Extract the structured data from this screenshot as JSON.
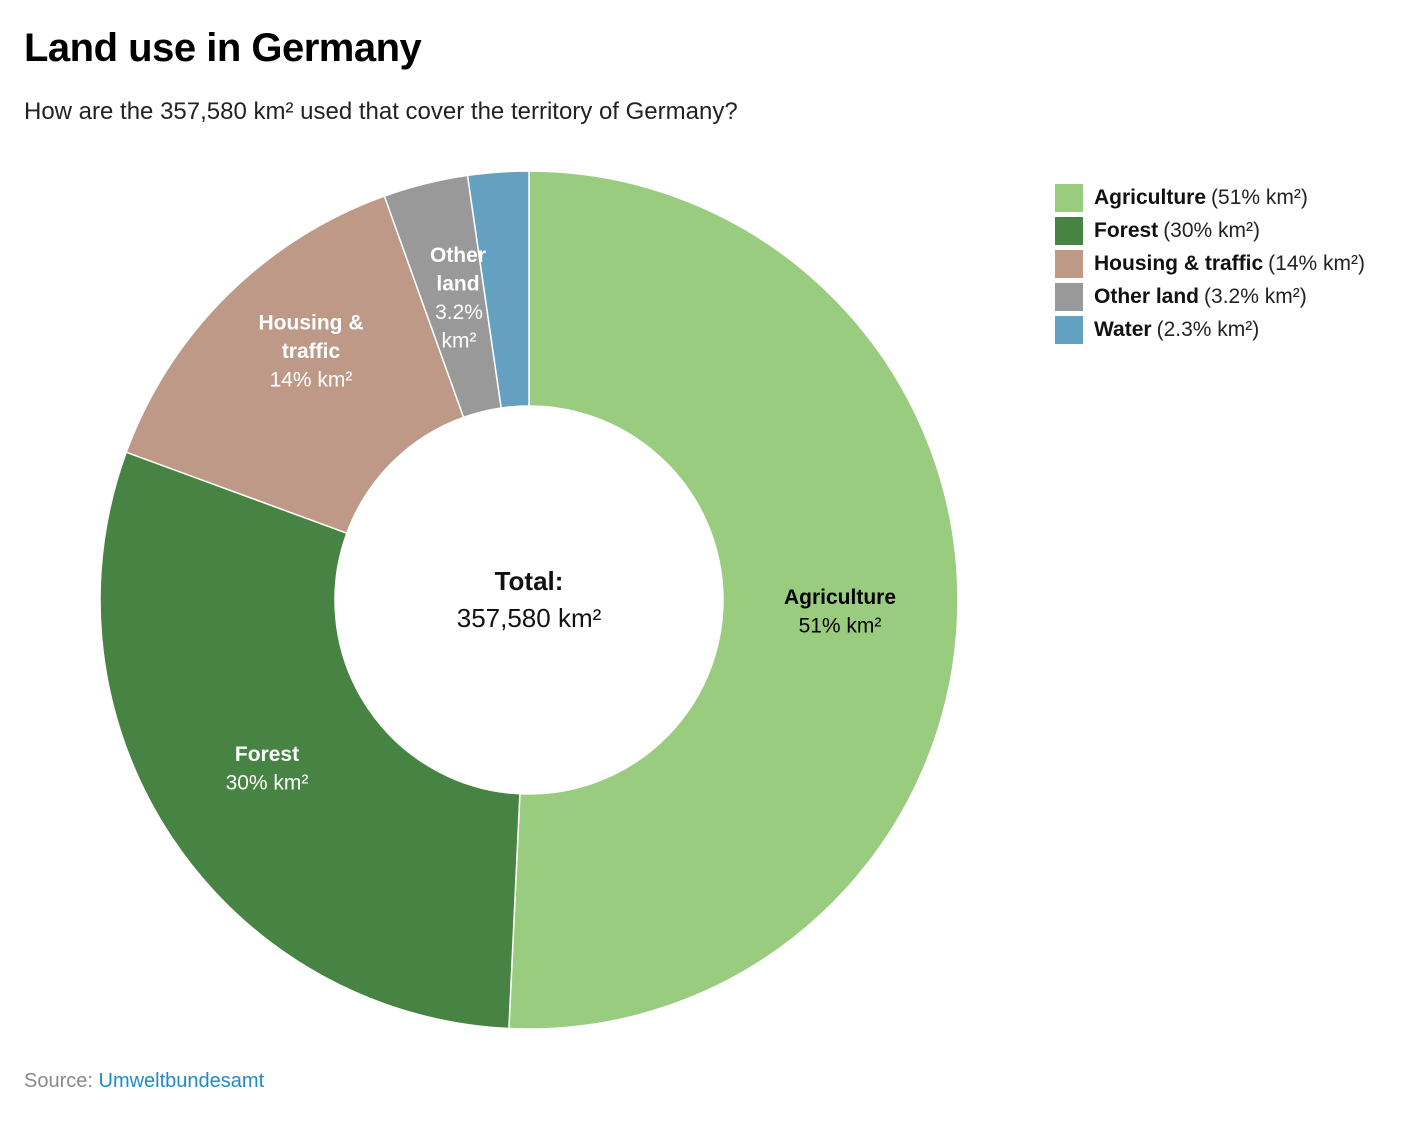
{
  "title": "Land use in Germany",
  "subtitle": "How are the 357,580 km² used that cover the territory of Germany?",
  "chart_data": {
    "type": "pie",
    "variant": "donut",
    "title": "Land use in Germany",
    "center_label": "Total:",
    "center_value": "357,580 km²",
    "unit": "% km²",
    "legend_position": "top-right",
    "slices": [
      {
        "name": "Agriculture",
        "value": 51,
        "label_value": "51% km²",
        "legend_value": "(51% km²)",
        "color": "#99cc7f",
        "label_color": "#000000"
      },
      {
        "name": "Forest",
        "value": 30,
        "label_value": "30% km²",
        "legend_value": "(30% km²)",
        "color": "#478342",
        "label_color": "#ffffff"
      },
      {
        "name": "Housing & traffic",
        "value": 14,
        "label_value": "14% km²",
        "legend_value": "(14% km²)",
        "color": "#bf9988",
        "label_color": "#ffffff"
      },
      {
        "name": "Other land",
        "value": 3.2,
        "label_value": "3.2% km²",
        "legend_value": "(3.2% km²)",
        "color": "#999999",
        "label_color": "#ffffff"
      },
      {
        "name": "Water",
        "value": 2.3,
        "label_value": "",
        "legend_value": "(2.3% km²)",
        "color": "#64a1c1",
        "label_color": "#ffffff"
      }
    ]
  },
  "source": {
    "label": "Source:",
    "link_text": "Umweltbundesamt"
  }
}
